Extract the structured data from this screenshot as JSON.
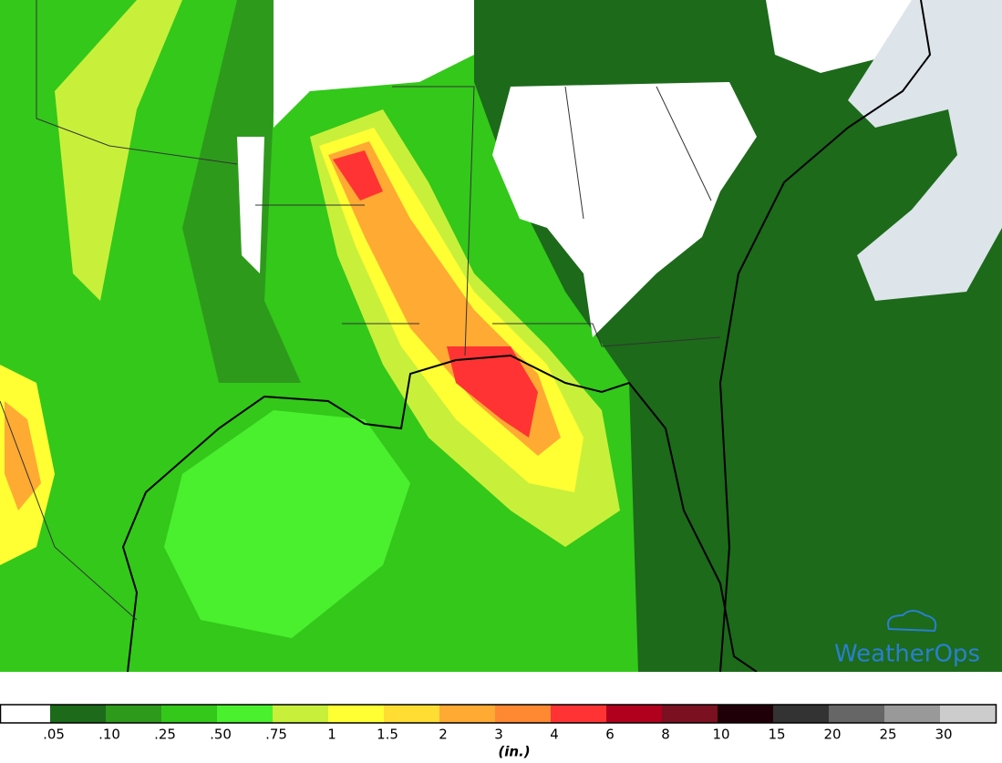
{
  "map": {
    "logo": "WeatherOps"
  },
  "legend": {
    "colors": [
      "#ffffff",
      "#1c6a1a",
      "#2e9a1c",
      "#33c81a",
      "#4af02e",
      "#c8f03a",
      "#ffff33",
      "#ffdd33",
      "#ffaa33",
      "#ff8833",
      "#ff3333",
      "#b0001e",
      "#7a1020",
      "#200008",
      "#333333",
      "#666666",
      "#999999",
      "#cccccc"
    ],
    "labels": [
      ".05",
      ".10",
      ".25",
      ".50",
      ".75",
      "1",
      "1.5",
      "2",
      "3",
      "4",
      "6",
      "8",
      "10",
      "15",
      "20",
      "25",
      "30"
    ],
    "unit": "(in.)"
  }
}
